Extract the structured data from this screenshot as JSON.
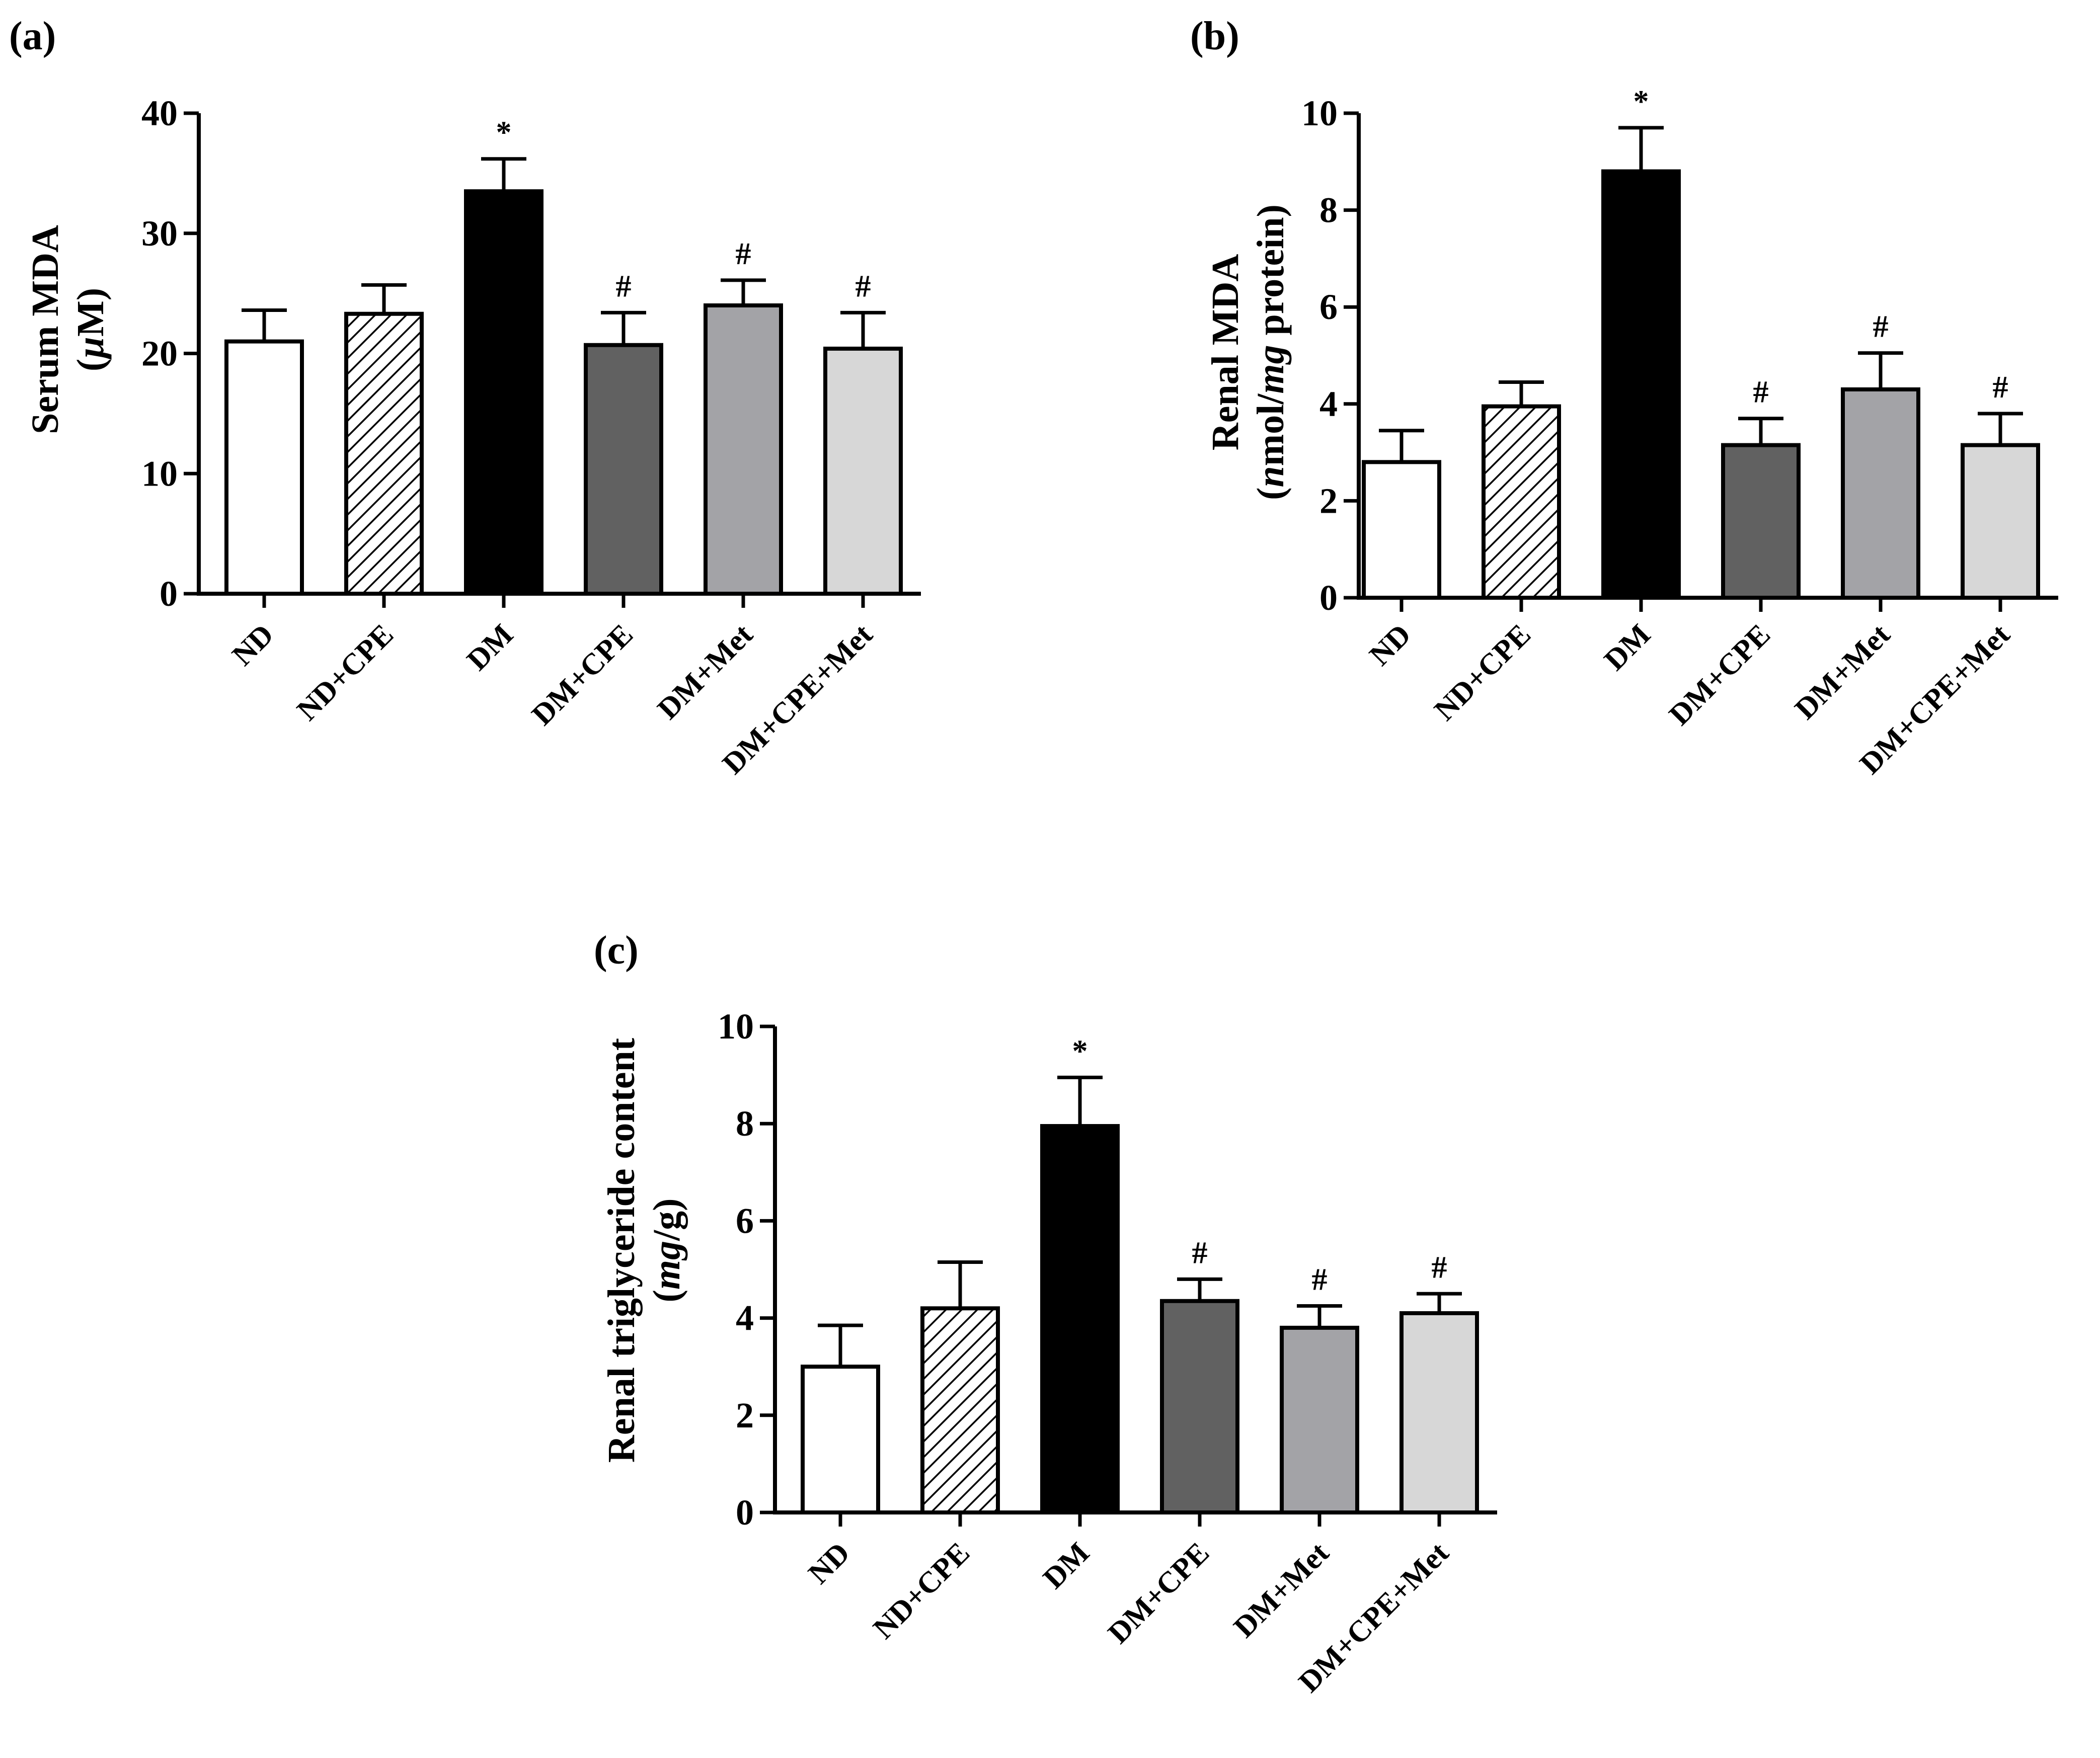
{
  "colors": {
    "ND": "#ffffff",
    "ND+CPE": "#ffffff",
    "DM": "#000000",
    "DM+CPE": "#616161",
    "DM+Met": "#a3a3a7",
    "DM+CPE+Met": "#d7d7d7",
    "stroke": "#000000"
  },
  "chart_data": [
    {
      "type": "bar",
      "panel_label": "(a)",
      "ylabel_line1": "Serum MDA",
      "ylabel_line2_prefix": "(",
      "ylabel_line2_italic": "µ",
      "ylabel_line2_suffix": "M)",
      "ylim": [
        0,
        40
      ],
      "yticks": [
        0,
        10,
        20,
        30,
        40
      ],
      "categories": [
        "ND",
        "ND+CPE",
        "DM",
        "DM+CPE",
        "DM+Met",
        "DM+CPE+Met"
      ],
      "values": [
        21.0,
        23.3,
        33.5,
        20.7,
        24.0,
        20.4
      ],
      "errors": [
        2.6,
        2.4,
        2.7,
        2.7,
        2.1,
        3.0
      ],
      "annotations": [
        "",
        "",
        "*",
        "#",
        "#",
        "#"
      ]
    },
    {
      "type": "bar",
      "panel_label": "(b)",
      "ylabel_line1": "Renal MDA",
      "ylabel_line2_prefix": "(",
      "ylabel_line2_italic": "n",
      "ylabel_line2_mid": "mol/",
      "ylabel_line2_italic2": "mg",
      "ylabel_line2_suffix": " protein)",
      "ylim": [
        0,
        10
      ],
      "yticks": [
        0,
        2,
        4,
        6,
        8,
        10
      ],
      "categories": [
        "ND",
        "ND+CPE",
        "DM",
        "DM+CPE",
        "DM+Met",
        "DM+CPE+Met"
      ],
      "values": [
        2.8,
        3.95,
        8.8,
        3.15,
        4.3,
        3.15
      ],
      "errors": [
        0.65,
        0.5,
        0.9,
        0.55,
        0.75,
        0.65
      ],
      "annotations": [
        "",
        "",
        "*",
        "#",
        "#",
        "#"
      ]
    },
    {
      "type": "bar",
      "panel_label": "(c)",
      "ylabel_line1": "Renal triglyceride content",
      "ylabel_line2_prefix": "(",
      "ylabel_line2_italic": "mg",
      "ylabel_line2_suffix": "/g)",
      "ylim": [
        0,
        10
      ],
      "yticks": [
        0,
        2,
        4,
        6,
        8,
        10
      ],
      "categories": [
        "ND",
        "ND+CPE",
        "DM",
        "DM+CPE",
        "DM+Met",
        "DM+CPE+Met"
      ],
      "values": [
        3.0,
        4.2,
        7.95,
        4.35,
        3.8,
        4.1
      ],
      "errors": [
        0.85,
        0.95,
        1.0,
        0.45,
        0.45,
        0.4
      ],
      "annotations": [
        "",
        "",
        "*",
        "#",
        "#",
        "#"
      ]
    }
  ]
}
